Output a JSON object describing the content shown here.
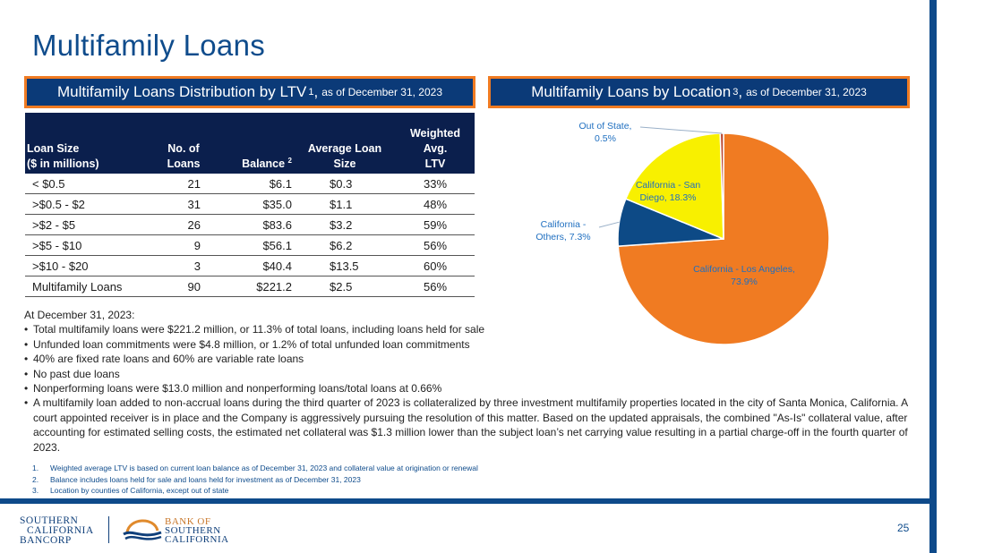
{
  "title": "Multifamily Loans",
  "left_panel": {
    "title": "Multifamily Loans Distribution by LTV",
    "sup": "1",
    "comma": ",",
    "asof": "as of December 31, 2023"
  },
  "right_panel": {
    "title": "Multifamily Loans by Location",
    "sup": "3",
    "comma": ",",
    "asof": "as of December 31, 2023"
  },
  "table": {
    "headers": {
      "loan_size_1": "Loan Size",
      "loan_size_2": "($ in millions)",
      "no_of_1": "No. of",
      "no_of_2": "Loans",
      "balance": "Balance",
      "balance_sup": "2",
      "avg_1": "Average Loan",
      "avg_2": "Size",
      "ltv_1": "Weighted Avg.",
      "ltv_2": "LTV"
    },
    "rows": [
      [
        "< $0.5",
        "21",
        "$6.1",
        "$0.3",
        "33%"
      ],
      [
        ">$0.5 - $2",
        "31",
        "$35.0",
        "$1.1",
        "48%"
      ],
      [
        ">$2 - $5",
        "26",
        "$83.6",
        "$3.2",
        "59%"
      ],
      [
        ">$5 - $10",
        "9",
        "$56.1",
        "$6.2",
        "56%"
      ],
      [
        ">$10 - $20",
        "3",
        "$40.4",
        "$13.5",
        "60%"
      ],
      [
        "Multifamily Loans",
        "90",
        "$221.2",
        "$2.5",
        "56%"
      ]
    ]
  },
  "notes": {
    "intro": "At December 31, 2023:",
    "bullets": [
      "Total multifamily loans were $221.2 million, or 11.3% of total loans, including loans held for sale",
      "Unfunded loan commitments were $4.8 million, or 1.2% of total unfunded loan commitments",
      "40% are fixed rate loans and 60% are variable rate loans",
      "No past due loans",
      "Nonperforming loans were $13.0 million and nonperforming loans/total loans at 0.66%",
      "A multifamily loan added to non-accrual loans during the third quarter of 2023 is collateralized by three investment multifamily properties located in the city of Santa Monica, California. A court appointed receiver is in place and the Company is aggressively pursuing the resolution of this matter. Based on the updated appraisals, the combined \"As-Is\" collateral value, after accounting for estimated selling costs, the estimated net collateral was $1.3 million lower than the subject loan’s net carrying value resulting in a partial charge-off in the fourth quarter of 2023."
    ]
  },
  "footnotes": [
    {
      "num": "1.",
      "text": "Weighted average LTV is based on current loan balance as of December 31, 2023 and collateral value at origination or renewal"
    },
    {
      "num": "2.",
      "text": "Balance includes loans held for sale and loans held for investment as of December 31, 2023"
    },
    {
      "num": "3.",
      "text": "Location by counties of California, except out of state"
    }
  ],
  "chart_data": {
    "type": "pie",
    "slices": [
      {
        "label_1": "California - Los Angeles,",
        "label_2": "73.9%",
        "value": 73.9,
        "color": "#f07b22",
        "label_color": "#1f6fc0"
      },
      {
        "label_1": "California -",
        "label_2": "Others, 7.3%",
        "value": 7.3,
        "color": "#0d4a86",
        "label_color": "#1f6fc0"
      },
      {
        "label_1": "California - San",
        "label_2": "Diego, 18.3%",
        "value": 18.3,
        "color": "#f8f000",
        "label_color": "#1f6fc0"
      },
      {
        "label_1": "Out of State,",
        "label_2": "0.5%",
        "value": 0.5,
        "color": "#b8432d",
        "label_color": "#1f6fc0"
      }
    ]
  },
  "page_number": "25",
  "logos": {
    "left_1": "SOUTHERN",
    "left_2": "CALIFORNIA",
    "left_3": "BANCORP",
    "right_1": "BANK OF",
    "right_2": "SOUTHERN",
    "right_3": "CALIFORNIA"
  },
  "colors": {
    "brand_blue": "#0f4c8c",
    "header_navy": "#0b3a78",
    "accent_orange": "#f07b22"
  }
}
